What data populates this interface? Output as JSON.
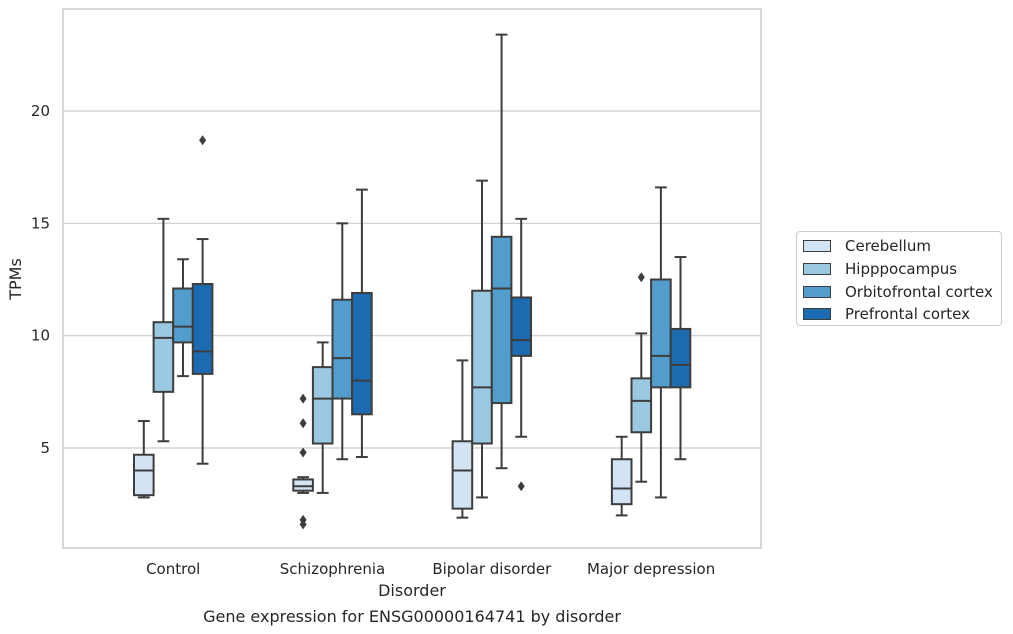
{
  "chart_data": {
    "type": "box",
    "title": "Gene expression for ENSG00000164741 by disorder",
    "xlabel": "Disorder",
    "ylabel": "TPMs",
    "ylim": [
      0.5,
      24.5
    ],
    "yticks": [
      5,
      10,
      15,
      20
    ],
    "grid": "horizontal",
    "legend_position": "right",
    "categories": [
      "Control",
      "Schizophrenia",
      "Bipolar disorder",
      "Major depression"
    ],
    "series": [
      {
        "name": "Cerebellum",
        "color": "#d2e3f3",
        "boxes": [
          {
            "min": 2.8,
            "q1": 2.9,
            "median": 4.0,
            "q3": 4.7,
            "max": 6.2,
            "outliers": []
          },
          {
            "min": 3.0,
            "q1": 3.1,
            "median": 3.3,
            "q3": 3.6,
            "max": 3.7,
            "outliers": [
              1.6,
              1.8,
              4.8,
              6.1,
              7.2
            ]
          },
          {
            "min": 1.9,
            "q1": 2.3,
            "median": 4.0,
            "q3": 5.3,
            "max": 8.9,
            "outliers": []
          },
          {
            "min": 2.0,
            "q1": 2.5,
            "median": 3.2,
            "q3": 4.5,
            "max": 5.5,
            "outliers": []
          }
        ]
      },
      {
        "name": "Hipppocampus",
        "color": "#9ac8e0",
        "boxes": [
          {
            "min": 5.3,
            "q1": 7.5,
            "median": 9.9,
            "q3": 10.6,
            "max": 15.2,
            "outliers": []
          },
          {
            "min": 3.0,
            "q1": 5.2,
            "median": 7.2,
            "q3": 8.6,
            "max": 9.7,
            "outliers": []
          },
          {
            "min": 2.8,
            "q1": 5.2,
            "median": 7.7,
            "q3": 12.0,
            "max": 16.9,
            "outliers": []
          },
          {
            "min": 3.5,
            "q1": 5.7,
            "median": 7.1,
            "q3": 8.1,
            "max": 10.1,
            "outliers": [
              12.6
            ]
          }
        ]
      },
      {
        "name": "Orbitofrontal cortex",
        "color": "#529dcc",
        "boxes": [
          {
            "min": 8.2,
            "q1": 9.7,
            "median": 10.4,
            "q3": 12.1,
            "max": 13.4,
            "outliers": []
          },
          {
            "min": 4.5,
            "q1": 7.2,
            "median": 9.0,
            "q3": 11.6,
            "max": 15.0,
            "outliers": []
          },
          {
            "min": 4.1,
            "q1": 7.0,
            "median": 12.1,
            "q3": 14.4,
            "max": 23.4,
            "outliers": []
          },
          {
            "min": 2.8,
            "q1": 7.7,
            "median": 9.1,
            "q3": 12.5,
            "max": 16.6,
            "outliers": []
          }
        ]
      },
      {
        "name": "Prefrontal cortex",
        "color": "#1c6aaf",
        "boxes": [
          {
            "min": 4.3,
            "q1": 8.3,
            "median": 9.3,
            "q3": 12.3,
            "max": 14.3,
            "outliers": [
              18.7
            ]
          },
          {
            "min": 4.6,
            "q1": 6.5,
            "median": 8.0,
            "q3": 11.9,
            "max": 16.5,
            "outliers": []
          },
          {
            "min": 5.5,
            "q1": 9.1,
            "median": 9.8,
            "q3": 11.7,
            "max": 15.2,
            "outliers": [
              3.3
            ]
          },
          {
            "min": 4.5,
            "q1": 7.7,
            "median": 8.7,
            "q3": 10.3,
            "max": 13.5,
            "outliers": []
          }
        ]
      }
    ]
  }
}
